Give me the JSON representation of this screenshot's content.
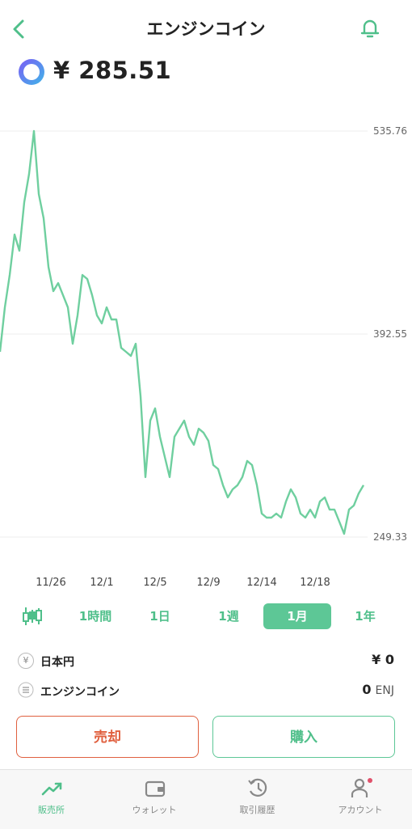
{
  "header": {
    "title": "エンジンコイン",
    "price": "¥ 285.51"
  },
  "chart_data": {
    "type": "line",
    "color": "#6fcf9f",
    "grid": true,
    "values": [
      380.0,
      411.4,
      434.2,
      462.7,
      451.3,
      485.5,
      505.5,
      535.76,
      491.3,
      474.2,
      439.9,
      422.8,
      428.5,
      420.0,
      411.4,
      385.7,
      405.7,
      434.2,
      431.4,
      420.0,
      405.7,
      400.0,
      411.4,
      402.8,
      402.8,
      382.8,
      380.0,
      377.1,
      385.7,
      348.6,
      291.6,
      331.5,
      340.1,
      320.1,
      305.8,
      291.6,
      320.1,
      325.8,
      331.5,
      320.1,
      314.4,
      325.8,
      322.9,
      317.2,
      300.1,
      297.3,
      285.9,
      277.3,
      283.0,
      285.9,
      291.6,
      303.0,
      300.1,
      285.9,
      265.9,
      263.0,
      263.0,
      265.9,
      263.0,
      274.4,
      283.0,
      277.3,
      265.9,
      263.0,
      268.7,
      263.0,
      274.4,
      277.3,
      268.7,
      268.7,
      260.2,
      251.6,
      268.7,
      271.6,
      280.1,
      285.9
    ],
    "xlim": [
      0,
      75
    ],
    "xticks": [
      {
        "value": 10.5,
        "label": "11/26"
      },
      {
        "value": 21,
        "label": "12/1"
      },
      {
        "value": 32,
        "label": "12/5"
      },
      {
        "value": 43,
        "label": "12/9"
      },
      {
        "value": 54,
        "label": "12/14"
      },
      {
        "value": 65,
        "label": "12/18"
      }
    ],
    "ylim": [
      249.33,
      535.76
    ],
    "yticks": [
      535.76,
      392.55,
      249.33
    ]
  },
  "ranges": [
    "1時間",
    "1日",
    "1週",
    "1月",
    "1年"
  ],
  "balances": [
    {
      "icon": "¥",
      "label": "日本円",
      "value": "¥ 0"
    },
    {
      "label": "エンジンコイン",
      "value": "0",
      "unit": "ENJ"
    }
  ],
  "buttons": {
    "sell": "売却",
    "buy": "購入"
  },
  "tabs": [
    "販売所",
    "ウォレット",
    "取引履歴",
    "アカウント"
  ]
}
